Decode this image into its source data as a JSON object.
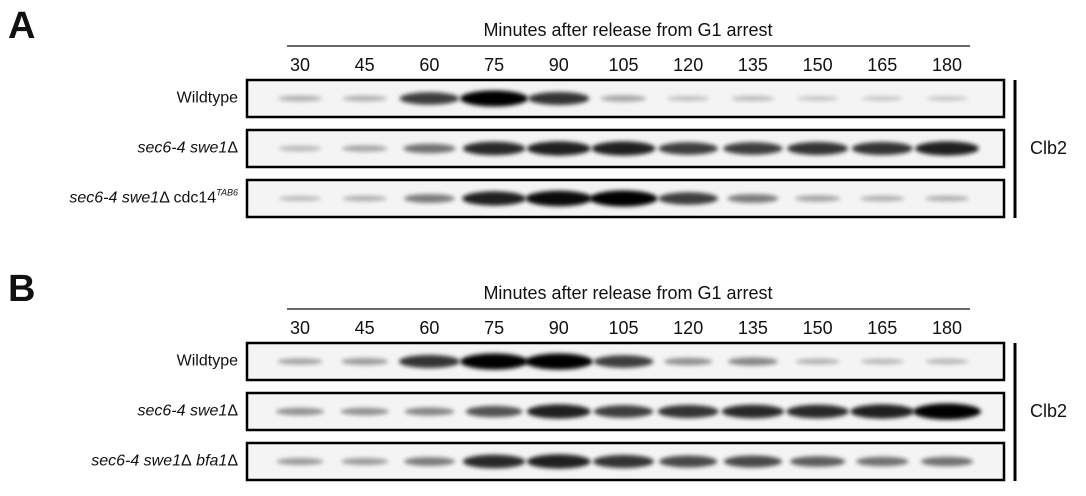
{
  "panels": [
    {
      "letter": "A",
      "header": "Minutes after release from G1 arrest",
      "timepoints": [
        30,
        45,
        60,
        75,
        90,
        105,
        120,
        135,
        150,
        165,
        180
      ],
      "rows": [
        {
          "label": [
            "Wildtype"
          ]
        },
        {
          "label": [
            "sec6-4 swe1",
            "Δ"
          ]
        },
        {
          "label": [
            "sec6-4 swe1",
            "Δ",
            " cdc14",
            "TAB6"
          ]
        }
      ],
      "antibody": "Clb2"
    },
    {
      "letter": "B",
      "header": "Minutes after release from G1 arrest",
      "timepoints": [
        30,
        45,
        60,
        75,
        90,
        105,
        120,
        135,
        150,
        165,
        180
      ],
      "rows": [
        {
          "label": [
            "Wildtype"
          ]
        },
        {
          "label": [
            "sec6-4 swe1",
            "Δ"
          ]
        },
        {
          "label": [
            "sec6-4 swe1",
            "Δ",
            " bfa1",
            "Δ"
          ]
        }
      ],
      "antibody": "Clb2"
    }
  ]
}
